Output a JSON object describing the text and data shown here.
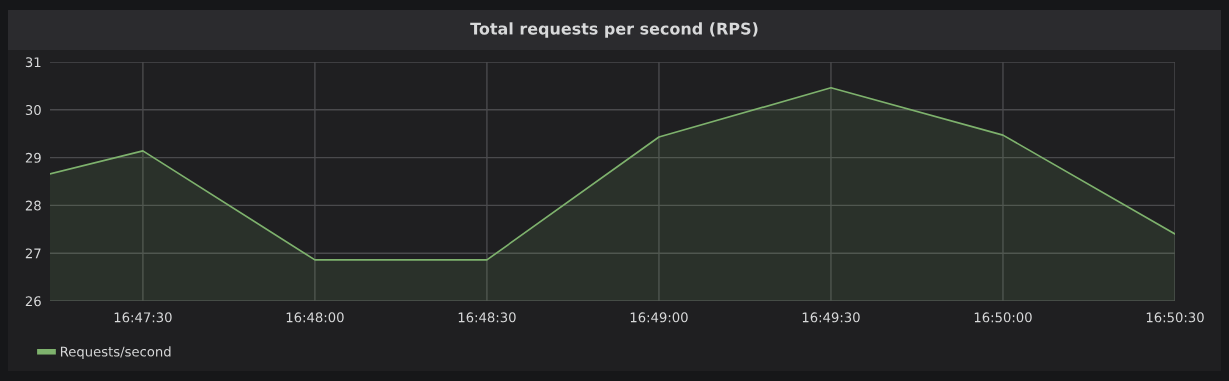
{
  "chart_data": {
    "type": "area",
    "title": "Total requests per second (RPS)",
    "x": [
      16.787167,
      16.791667,
      16.8,
      16.808333,
      16.816667,
      16.825,
      16.833333,
      16.841667
    ],
    "series": [
      {
        "name": "Requests/second",
        "color": "#7eb26d",
        "values": [
          28.66,
          29.14,
          26.86,
          26.86,
          29.43,
          30.46,
          29.47,
          27.4
        ]
      }
    ],
    "xlim": [
      16.787167,
      16.841667
    ],
    "xticks": [
      {
        "value": 16.791667,
        "label": "16:47:30"
      },
      {
        "value": 16.8,
        "label": "16:48:00"
      },
      {
        "value": 16.808333,
        "label": "16:48:30"
      },
      {
        "value": 16.816667,
        "label": "16:49:00"
      },
      {
        "value": 16.825,
        "label": "16:49:30"
      },
      {
        "value": 16.833333,
        "label": "16:50:00"
      },
      {
        "value": 16.841667,
        "label": "16:50:30"
      }
    ],
    "ylim": [
      26,
      31
    ],
    "yticks": [
      26,
      27,
      28,
      29,
      30,
      31
    ],
    "grid": true,
    "legend": "bottom left",
    "line_style": "solid"
  }
}
